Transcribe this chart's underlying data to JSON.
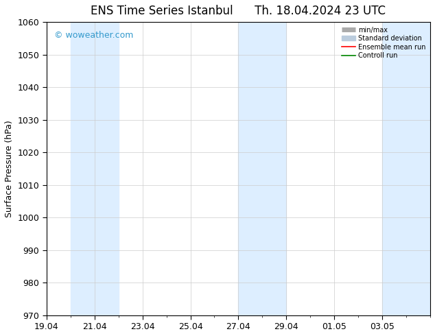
{
  "title": "ENS Time Series Istanbul",
  "subtitle": "Th. 18.04.2024 23 UTC",
  "ylabel": "Surface Pressure (hPa)",
  "ylim": [
    970,
    1060
  ],
  "yticks": [
    970,
    980,
    990,
    1000,
    1010,
    1020,
    1030,
    1040,
    1050,
    1060
  ],
  "xticklabels": [
    "19.04",
    "21.04",
    "23.04",
    "25.04",
    "27.04",
    "29.04",
    "01.05",
    "03.05"
  ],
  "xtick_days": [
    0,
    2,
    4,
    6,
    8,
    10,
    12,
    14
  ],
  "xlim": [
    0,
    16
  ],
  "shaded_bands": [
    {
      "x_start": 1,
      "x_end": 3
    },
    {
      "x_start": 8,
      "x_end": 10
    },
    {
      "x_start": 14,
      "x_end": 16
    }
  ],
  "shade_color": "#ddeeff",
  "watermark": "© woweather.com",
  "watermark_color": "#3399cc",
  "legend_labels": [
    "min/max",
    "Standard deviation",
    "Ensemble mean run",
    "Controll run"
  ],
  "legend_colors": [
    "#aaaaaa",
    "#bbccdd",
    "#ff0000",
    "#008800"
  ],
  "background_color": "#ffffff",
  "grid_color": "#cccccc",
  "title_fontsize": 12,
  "tick_fontsize": 9,
  "ylabel_fontsize": 9
}
